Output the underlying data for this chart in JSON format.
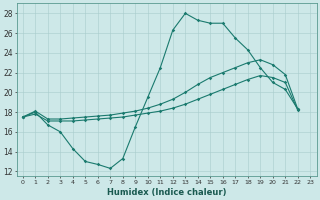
{
  "xlabel": "Humidex (Indice chaleur)",
  "xlim": [
    -0.5,
    23.5
  ],
  "ylim": [
    11.5,
    29.0
  ],
  "xticks": [
    0,
    1,
    2,
    3,
    4,
    5,
    6,
    7,
    8,
    9,
    10,
    11,
    12,
    13,
    14,
    15,
    16,
    17,
    18,
    19,
    20,
    21,
    22,
    23
  ],
  "yticks": [
    12,
    14,
    16,
    18,
    20,
    22,
    24,
    26,
    28
  ],
  "bg_color": "#cde8e8",
  "line_color": "#1a7a6e",
  "line1_y": [
    17.5,
    18.0,
    16.7,
    16.0,
    14.3,
    13.0,
    12.7,
    12.3,
    13.3,
    16.5,
    19.5,
    22.5,
    26.3,
    28.0,
    27.3,
    27.0,
    27.0,
    25.5,
    24.3,
    22.5,
    21.0,
    20.3,
    18.3
  ],
  "line2_y": [
    17.5,
    18.1,
    17.3,
    17.3,
    17.4,
    17.5,
    17.6,
    17.7,
    17.9,
    18.1,
    18.4,
    18.8,
    19.3,
    20.0,
    20.8,
    21.5,
    22.0,
    22.5,
    23.0,
    23.3,
    22.8,
    21.8,
    18.3
  ],
  "line3_y": [
    17.5,
    17.8,
    17.1,
    17.1,
    17.1,
    17.2,
    17.3,
    17.4,
    17.5,
    17.7,
    17.9,
    18.1,
    18.4,
    18.8,
    19.3,
    19.8,
    20.3,
    20.8,
    21.3,
    21.7,
    21.5,
    21.0,
    18.2
  ]
}
